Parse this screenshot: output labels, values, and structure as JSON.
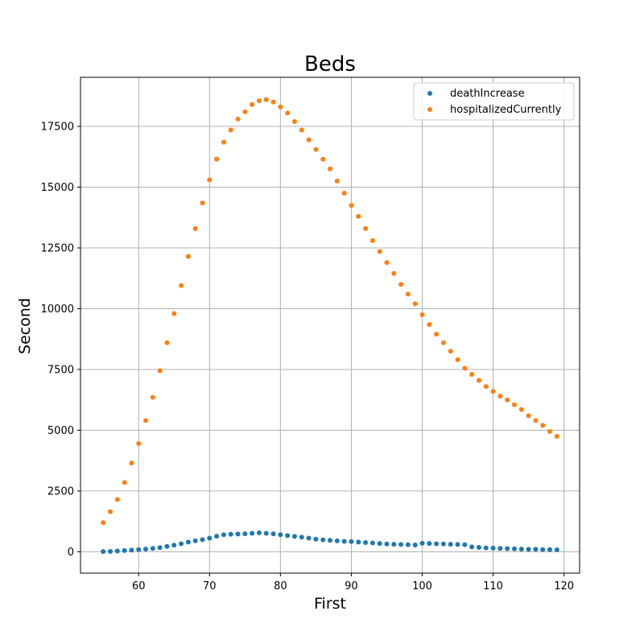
{
  "chart_data": {
    "type": "scatter",
    "title": "Beds",
    "xlabel": "First",
    "ylabel": "Second",
    "xlim": [
      51.8,
      122.2
    ],
    "ylim": [
      -880,
      19520
    ],
    "xticks": [
      60,
      70,
      80,
      90,
      100,
      110,
      120
    ],
    "yticks": [
      0,
      2500,
      5000,
      7500,
      10000,
      12500,
      15000,
      17500
    ],
    "grid": true,
    "legend_position": "top-right",
    "x": [
      55,
      56,
      57,
      58,
      59,
      60,
      61,
      62,
      63,
      64,
      65,
      66,
      67,
      68,
      69,
      70,
      71,
      72,
      73,
      74,
      75,
      76,
      77,
      78,
      79,
      80,
      81,
      82,
      83,
      84,
      85,
      86,
      87,
      88,
      89,
      90,
      91,
      92,
      93,
      94,
      95,
      96,
      97,
      98,
      99,
      100,
      101,
      102,
      103,
      104,
      105,
      106,
      107,
      108,
      109,
      110,
      111,
      112,
      113,
      114,
      115,
      116,
      117,
      118,
      119
    ],
    "series": [
      {
        "name": "deathIncrease",
        "color": "#1f77b4",
        "values": [
          10,
          15,
          30,
          50,
          70,
          90,
          110,
          140,
          170,
          220,
          270,
          330,
          400,
          450,
          500,
          560,
          640,
          700,
          720,
          730,
          740,
          760,
          780,
          760,
          740,
          700,
          670,
          630,
          600,
          560,
          520,
          490,
          470,
          450,
          430,
          420,
          400,
          380,
          360,
          340,
          320,
          310,
          300,
          290,
          280,
          350,
          340,
          330,
          320,
          310,
          300,
          290,
          200,
          180,
          160,
          150,
          140,
          130,
          120,
          110,
          100,
          100,
          90,
          90,
          80
        ]
      },
      {
        "name": "hospitalizedCurrently",
        "color": "#ff7f0e",
        "values": [
          1200,
          1650,
          2150,
          2850,
          3650,
          4450,
          5400,
          6350,
          7450,
          8600,
          9800,
          10950,
          12150,
          13300,
          14350,
          15300,
          16150,
          16850,
          17350,
          17800,
          18100,
          18400,
          18550,
          18600,
          18500,
          18300,
          18050,
          17700,
          17350,
          16950,
          16550,
          16150,
          15750,
          15250,
          14750,
          14250,
          13800,
          13300,
          12800,
          12350,
          11900,
          11450,
          11000,
          10600,
          10200,
          9750,
          9350,
          8950,
          8600,
          8250,
          7900,
          7550,
          7300,
          7050,
          6800,
          6600,
          6400,
          6250,
          6050,
          5850,
          5600,
          5400,
          5200,
          4950,
          4750
        ]
      }
    ]
  }
}
